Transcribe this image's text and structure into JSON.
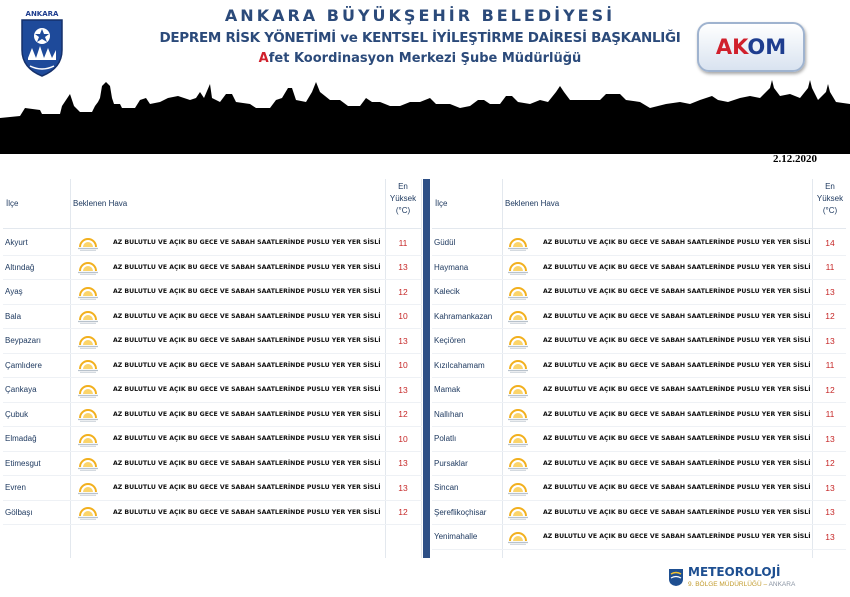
{
  "header": {
    "logo_text": "ANKARA",
    "title1": "ANKARA BÜYÜKŞEHİR BELEDİYESİ",
    "title2": "DEPREM RİSK YÖNETİMİ ve KENTSEL İYİLEŞTİRME DAİRESİ BAŞKANLIĞI",
    "title3_first": "A",
    "title3_rest": "fet Koordinasyon Merkezi Şube Müdürlüğü",
    "akom_a": "AK",
    "akom_b": "OM",
    "date": "2.12.2020"
  },
  "columns": {
    "ilce": "İlçe",
    "hava": "Beklenen Hava",
    "yuksek_1": "En",
    "yuksek_2": "Yüksek",
    "yuksek_3": "(°C)"
  },
  "left_rows": [
    {
      "ilce": "Akyurt",
      "desc": "AZ BULUTLU VE AÇIK BU GECE VE SABAH SAATLERİNDE PUSLU YER YER SİSLİ",
      "temp": "11",
      "icon": "partly-cloudy-icon"
    },
    {
      "ilce": "Altındağ",
      "desc": "AZ BULUTLU VE AÇIK BU GECE VE SABAH SAATLERİNDE PUSLU YER YER SİSLİ",
      "temp": "13",
      "icon": "partly-cloudy-icon"
    },
    {
      "ilce": "Ayaş",
      "desc": "AZ BULUTLU VE AÇIK BU GECE VE SABAH SAATLERİNDE PUSLU YER YER SİSLİ",
      "temp": "12",
      "icon": "partly-cloudy-icon"
    },
    {
      "ilce": "Bala",
      "desc": "AZ BULUTLU VE AÇIK BU GECE VE SABAH SAATLERİNDE PUSLU YER YER SİSLİ",
      "temp": "10",
      "icon": "partly-cloudy-icon"
    },
    {
      "ilce": "Beypazarı",
      "desc": "AZ BULUTLU VE AÇIK BU GECE VE SABAH SAATLERİNDE PUSLU YER YER SİSLİ",
      "temp": "13",
      "icon": "partly-cloudy-icon"
    },
    {
      "ilce": "Çamlıdere",
      "desc": "AZ BULUTLU VE AÇIK BU GECE VE SABAH SAATLERİNDE PUSLU YER YER SİSLİ",
      "temp": "10",
      "icon": "partly-cloudy-icon"
    },
    {
      "ilce": "Çankaya",
      "desc": "AZ BULUTLU VE AÇIK BU GECE VE SABAH SAATLERİNDE PUSLU YER YER SİSLİ",
      "temp": "13",
      "icon": "partly-cloudy-icon"
    },
    {
      "ilce": "Çubuk",
      "desc": "AZ BULUTLU VE AÇIK BU GECE VE SABAH SAATLERİNDE PUSLU YER YER SİSLİ",
      "temp": "12",
      "icon": "partly-cloudy-icon"
    },
    {
      "ilce": "Elmadağ",
      "desc": "AZ BULUTLU VE AÇIK BU GECE VE SABAH SAATLERİNDE PUSLU YER YER SİSLİ",
      "temp": "10",
      "icon": "partly-cloudy-icon"
    },
    {
      "ilce": "Etimesgut",
      "desc": "AZ BULUTLU VE AÇIK BU GECE VE SABAH SAATLERİNDE PUSLU YER YER SİSLİ",
      "temp": "13",
      "icon": "partly-cloudy-icon"
    },
    {
      "ilce": "Evren",
      "desc": "AZ BULUTLU VE AÇIK BU GECE VE SABAH SAATLERİNDE PUSLU YER YER SİSLİ",
      "temp": "13",
      "icon": "partly-cloudy-icon"
    },
    {
      "ilce": "Gölbaşı",
      "desc": "AZ BULUTLU VE AÇIK BU GECE VE SABAH SAATLERİNDE PUSLU YER YER SİSLİ",
      "temp": "12",
      "icon": "partly-cloudy-icon"
    }
  ],
  "right_rows": [
    {
      "ilce": "Güdül",
      "desc": "AZ BULUTLU VE AÇIK BU GECE VE SABAH SAATLERİNDE PUSLU YER YER SİSLİ",
      "temp": "14",
      "icon": "partly-cloudy-icon"
    },
    {
      "ilce": "Haymana",
      "desc": "AZ BULUTLU VE AÇIK BU GECE VE SABAH SAATLERİNDE PUSLU YER YER SİSLİ",
      "temp": "11",
      "icon": "partly-cloudy-icon"
    },
    {
      "ilce": "Kalecik",
      "desc": "AZ BULUTLU VE AÇIK BU GECE VE SABAH SAATLERİNDE PUSLU YER YER SİSLİ",
      "temp": "13",
      "icon": "partly-cloudy-icon"
    },
    {
      "ilce": "Kahramankazan",
      "desc": "AZ BULUTLU VE AÇIK BU GECE VE SABAH SAATLERİNDE PUSLU YER YER SİSLİ",
      "temp": "12",
      "icon": "partly-cloudy-icon"
    },
    {
      "ilce": "Keçiören",
      "desc": "AZ BULUTLU VE AÇIK BU GECE VE SABAH SAATLERİNDE PUSLU YER YER SİSLİ",
      "temp": "13",
      "icon": "partly-cloudy-icon"
    },
    {
      "ilce": "Kızılcahamam",
      "desc": "AZ BULUTLU VE AÇIK BU GECE VE SABAH SAATLERİNDE PUSLU YER YER SİSLİ",
      "temp": "11",
      "icon": "partly-cloudy-icon"
    },
    {
      "ilce": "Mamak",
      "desc": "AZ BULUTLU VE AÇIK BU GECE VE SABAH SAATLERİNDE PUSLU YER YER SİSLİ",
      "temp": "12",
      "icon": "partly-cloudy-icon"
    },
    {
      "ilce": "Nallıhan",
      "desc": "AZ BULUTLU VE AÇIK BU GECE VE SABAH SAATLERİNDE PUSLU YER YER SİSLİ",
      "temp": "11",
      "icon": "partly-cloudy-icon"
    },
    {
      "ilce": "Polatlı",
      "desc": "AZ BULUTLU VE AÇIK BU GECE VE SABAH SAATLERİNDE PUSLU YER YER SİSLİ",
      "temp": "13",
      "icon": "partly-cloudy-icon"
    },
    {
      "ilce": "Pursaklar",
      "desc": "AZ BULUTLU VE AÇIK BU GECE VE SABAH SAATLERİNDE PUSLU YER YER SİSLİ",
      "temp": "12",
      "icon": "partly-cloudy-icon"
    },
    {
      "ilce": "Sincan",
      "desc": "AZ BULUTLU VE AÇIK BU GECE VE SABAH SAATLERİNDE PUSLU YER YER SİSLİ",
      "temp": "13",
      "icon": "partly-cloudy-icon"
    },
    {
      "ilce": "Şereflikoçhisar",
      "desc": "AZ BULUTLU VE AÇIK BU GECE VE SABAH SAATLERİNDE PUSLU YER YER SİSLİ",
      "temp": "13",
      "icon": "partly-cloudy-icon"
    },
    {
      "ilce": "Yenimahalle",
      "desc": "AZ BULUTLU VE AÇIK BU GECE VE SABAH SAATLERİNDE PUSLU YER YER SİSLİ",
      "temp": "13",
      "icon": "partly-cloudy-icon"
    }
  ],
  "footer": {
    "meteo_title": "METEOROLOJİ",
    "meteo_sub": "9. BÖLGE MÜDÜRLÜĞÜ",
    "meteo_city": "ANKARA"
  },
  "colors": {
    "navy": "#2d4f86",
    "temp_red": "#c62828",
    "accent_red": "#d0202c"
  }
}
